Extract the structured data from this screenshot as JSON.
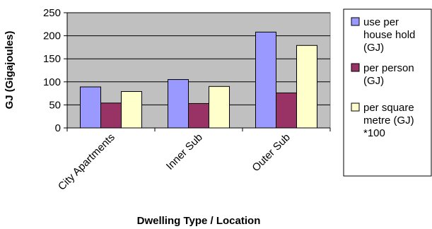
{
  "chart_data": {
    "type": "bar",
    "categories": [
      "City Apartments",
      "Inner Sub",
      "Outer Sub"
    ],
    "series": [
      {
        "name": "use per house hold (GJ)",
        "name_lines": [
          "use per",
          "house hold",
          "(GJ)"
        ],
        "color": "#9999FF",
        "values": [
          89,
          105,
          208
        ]
      },
      {
        "name": "per person (GJ)",
        "name_lines": [
          "per person",
          "(GJ)"
        ],
        "color": "#993366",
        "values": [
          54,
          53,
          76
        ]
      },
      {
        "name": "per square metre (GJ) *100",
        "name_lines": [
          "per square",
          "metre (GJ)",
          "*100"
        ],
        "color": "#FFFFCC",
        "values": [
          79,
          90,
          179
        ]
      }
    ],
    "ylim": [
      0,
      250
    ],
    "yticks": [
      0,
      50,
      100,
      150,
      200,
      250
    ],
    "xlabel": "Dwelling Type / Location",
    "ylabel": "GJ (Gigajoules)",
    "grid": true,
    "plot_background": "#C0C0C0",
    "legend_position": "right"
  }
}
